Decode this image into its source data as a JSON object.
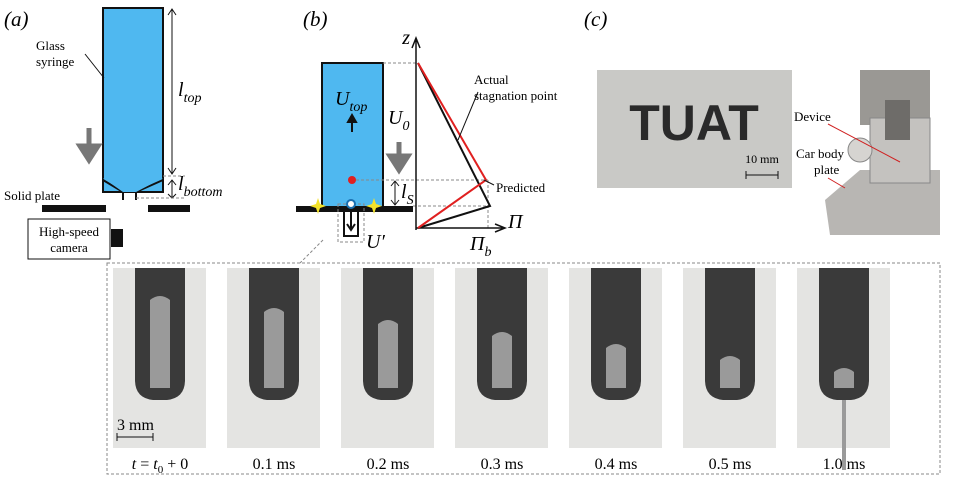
{
  "panel_a": {
    "label": "(a)",
    "syringe_label": [
      "Glass",
      "syringe"
    ],
    "l_top": {
      "base": "l",
      "sub": "top"
    },
    "l_bottom": {
      "base": "l",
      "sub": "bottom"
    },
    "plate_label": "Solid plate",
    "camera_label": [
      "High-speed",
      "camera"
    ]
  },
  "panel_b": {
    "label": "(b)",
    "z_axis": "z",
    "u_top": {
      "base": "U",
      "sub": "top"
    },
    "u_0": {
      "base": "U",
      "sub": "0"
    },
    "l_s": {
      "base": "l",
      "sub": "S"
    },
    "u_prime": "U′",
    "pi_axis": "Π",
    "pi_b": {
      "base": "Π",
      "sub": "b"
    },
    "actual_label": [
      "Actual",
      "stagnation point"
    ],
    "predicted_label": "Predicted"
  },
  "panel_c": {
    "label": "(c)",
    "sample_text": "TUAT",
    "scale": "10 mm",
    "device_label": "Device",
    "plate_label": [
      "Car body",
      "plate"
    ]
  },
  "frames": {
    "scale": "3 mm",
    "start_time": {
      "lhs": "t",
      "op": "=",
      "base": "t",
      "sub": "0",
      "tail": "+ 0"
    },
    "times": [
      "0.1 ms",
      "0.2 ms",
      "0.3 ms",
      "0.4 ms",
      "0.5 ms",
      "1.0 ms"
    ]
  }
}
